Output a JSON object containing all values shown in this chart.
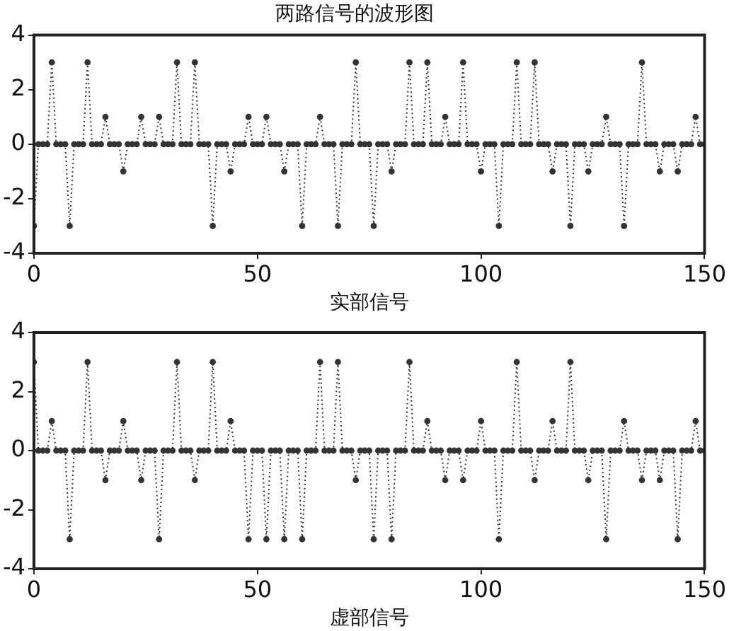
{
  "chart_data": [
    {
      "type": "line",
      "title": "两路信号的波形图",
      "xlabel": "实部信号",
      "xlim": [
        0,
        150
      ],
      "xticks": [
        0,
        50,
        100,
        150
      ],
      "ylim": [
        -4,
        4
      ],
      "yticks": [
        -4,
        -2,
        0,
        2,
        4
      ],
      "grid": false,
      "legend": false,
      "marker": "circle",
      "line_style": "dotted",
      "x": [
        0,
        1,
        2,
        3,
        4,
        5,
        6,
        7,
        8,
        9,
        10,
        11,
        12,
        13,
        14,
        15,
        16,
        17,
        18,
        19,
        20,
        21,
        22,
        23,
        24,
        25,
        26,
        27,
        28,
        29,
        30,
        31,
        32,
        33,
        34,
        35,
        36,
        37,
        38,
        39,
        40,
        41,
        42,
        43,
        44,
        45,
        46,
        47,
        48,
        49,
        50,
        51,
        52,
        53,
        54,
        55,
        56,
        57,
        58,
        59,
        60,
        61,
        62,
        63,
        64,
        65,
        66,
        67,
        68,
        69,
        70,
        71,
        72,
        73,
        74,
        75,
        76,
        77,
        78,
        79,
        80,
        81,
        82,
        83,
        84,
        85,
        86,
        87,
        88,
        89,
        90,
        91,
        92,
        93,
        94,
        95,
        96,
        97,
        98,
        99,
        100,
        101,
        102,
        103,
        104,
        105,
        106,
        107,
        108,
        109,
        110,
        111,
        112,
        113,
        114,
        115,
        116,
        117,
        118,
        119,
        120,
        121,
        122,
        123,
        124,
        125,
        126,
        127,
        128,
        129,
        130,
        131,
        132,
        133,
        134,
        135,
        136,
        137,
        138,
        139,
        140,
        141,
        142,
        143,
        144,
        145,
        146,
        147,
        148,
        149,
        150
      ],
      "series": [
        {
          "color": "#333333",
          "values": [
            -3,
            0,
            0,
            0,
            3,
            0,
            0,
            0,
            -3,
            0,
            0,
            0,
            3,
            0,
            0,
            0,
            1,
            0,
            0,
            0,
            -1,
            0,
            0,
            0,
            1,
            0,
            0,
            0,
            1,
            0,
            0,
            0,
            3,
            0,
            0,
            0,
            3,
            0,
            0,
            0,
            -3,
            0,
            0,
            0,
            -1,
            0,
            0,
            0,
            1,
            0,
            0,
            0,
            1,
            0,
            0,
            0,
            -1,
            0,
            0,
            0,
            -3,
            0,
            0,
            0,
            1,
            0,
            0,
            0,
            -3,
            0,
            0,
            0,
            3,
            0,
            0,
            0,
            -3,
            0,
            0,
            0,
            -1,
            0,
            0,
            0,
            3,
            0,
            0,
            0,
            3,
            0,
            0,
            0,
            1,
            0,
            0,
            0,
            3,
            0,
            0,
            0,
            -1,
            0,
            0,
            0,
            -3,
            0,
            0,
            0,
            3,
            0,
            0,
            0,
            3,
            0,
            0,
            0,
            -1,
            0,
            0,
            0,
            -3,
            0,
            0,
            0,
            -1,
            0,
            0,
            0,
            1,
            0,
            0,
            0,
            -3,
            0,
            0,
            0,
            3,
            0,
            0,
            0,
            -1,
            0,
            0,
            0,
            -1,
            0,
            0,
            0,
            1,
            0,
            0
          ]
        }
      ]
    },
    {
      "type": "line",
      "xlabel": "虚部信号",
      "xlim": [
        0,
        150
      ],
      "xticks": [
        0,
        50,
        100,
        150
      ],
      "ylim": [
        -4,
        4
      ],
      "yticks": [
        -4,
        -2,
        0,
        2,
        4
      ],
      "grid": false,
      "legend": false,
      "marker": "circle",
      "line_style": "dotted",
      "x": [
        0,
        1,
        2,
        3,
        4,
        5,
        6,
        7,
        8,
        9,
        10,
        11,
        12,
        13,
        14,
        15,
        16,
        17,
        18,
        19,
        20,
        21,
        22,
        23,
        24,
        25,
        26,
        27,
        28,
        29,
        30,
        31,
        32,
        33,
        34,
        35,
        36,
        37,
        38,
        39,
        40,
        41,
        42,
        43,
        44,
        45,
        46,
        47,
        48,
        49,
        50,
        51,
        52,
        53,
        54,
        55,
        56,
        57,
        58,
        59,
        60,
        61,
        62,
        63,
        64,
        65,
        66,
        67,
        68,
        69,
        70,
        71,
        72,
        73,
        74,
        75,
        76,
        77,
        78,
        79,
        80,
        81,
        82,
        83,
        84,
        85,
        86,
        87,
        88,
        89,
        90,
        91,
        92,
        93,
        94,
        95,
        96,
        97,
        98,
        99,
        100,
        101,
        102,
        103,
        104,
        105,
        106,
        107,
        108,
        109,
        110,
        111,
        112,
        113,
        114,
        115,
        116,
        117,
        118,
        119,
        120,
        121,
        122,
        123,
        124,
        125,
        126,
        127,
        128,
        129,
        130,
        131,
        132,
        133,
        134,
        135,
        136,
        137,
        138,
        139,
        140,
        141,
        142,
        143,
        144,
        145,
        146,
        147,
        148,
        149,
        150
      ],
      "series": [
        {
          "color": "#333333",
          "values": [
            3,
            0,
            0,
            0,
            1,
            0,
            0,
            0,
            -3,
            0,
            0,
            0,
            3,
            0,
            0,
            0,
            -1,
            0,
            0,
            0,
            1,
            0,
            0,
            0,
            -1,
            0,
            0,
            0,
            -3,
            0,
            0,
            0,
            3,
            0,
            0,
            0,
            -1,
            0,
            0,
            0,
            3,
            0,
            0,
            0,
            1,
            0,
            0,
            0,
            -3,
            0,
            0,
            0,
            -3,
            0,
            0,
            0,
            -3,
            0,
            0,
            0,
            -3,
            0,
            0,
            0,
            3,
            0,
            0,
            0,
            3,
            0,
            0,
            0,
            -1,
            0,
            0,
            0,
            -3,
            0,
            0,
            0,
            -3,
            0,
            0,
            0,
            3,
            0,
            0,
            0,
            1,
            0,
            0,
            0,
            -1,
            0,
            0,
            0,
            -1,
            0,
            0,
            0,
            1,
            0,
            0,
            0,
            -3,
            0,
            0,
            0,
            3,
            0,
            0,
            0,
            -1,
            0,
            0,
            0,
            1,
            0,
            0,
            0,
            3,
            0,
            0,
            0,
            -1,
            0,
            0,
            0,
            -3,
            0,
            0,
            0,
            1,
            0,
            0,
            0,
            -1,
            0,
            0,
            0,
            -1,
            0,
            0,
            0,
            -3,
            0,
            0,
            0,
            1,
            0,
            0
          ]
        }
      ]
    }
  ]
}
